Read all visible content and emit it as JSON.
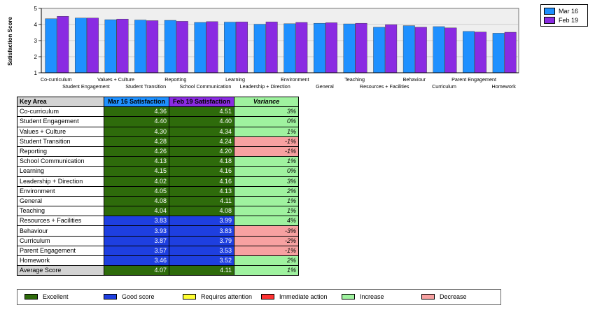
{
  "chart_data": {
    "type": "bar",
    "ylabel": "Satisfaction Score",
    "ylim": [
      1,
      5
    ],
    "yticks": [
      "1",
      "2",
      "3",
      "4",
      "5"
    ],
    "grid": "horizontal",
    "legend_position": "top-right",
    "categories": [
      "Co-curriculum",
      "Student Engagement",
      "Values + Culture",
      "Student Transition",
      "Reporting",
      "School Communication",
      "Learning",
      "Leadership + Direction",
      "Environment",
      "General",
      "Teaching",
      "Resources + Facilities",
      "Behaviour",
      "Curriculum",
      "Parent Engagement",
      "Homework"
    ],
    "series": [
      {
        "name": "Mar 16",
        "color": "#1e90ff",
        "values": [
          4.36,
          4.4,
          4.3,
          4.28,
          4.26,
          4.13,
          4.15,
          4.02,
          4.05,
          4.08,
          4.04,
          3.83,
          3.93,
          3.87,
          3.57,
          3.46
        ]
      },
      {
        "name": "Feb 19",
        "color": "#8a2be2",
        "values": [
          4.51,
          4.4,
          4.34,
          4.24,
          4.2,
          4.18,
          4.16,
          4.16,
          4.13,
          4.11,
          4.08,
          3.99,
          3.83,
          3.79,
          3.53,
          3.52
        ]
      }
    ]
  },
  "table": {
    "headers": {
      "area": "Key Area",
      "m16": "Mar 16 Satisfaction",
      "f19": "Feb 19 Satisfaction",
      "variance": "Variance"
    },
    "rows": [
      {
        "area": "Co-curriculum",
        "m16": "4.36",
        "f19": "4.51",
        "variance": "3%",
        "m16_rating": "excellent",
        "f19_rating": "excellent",
        "trend": "increase"
      },
      {
        "area": "Student Engagement",
        "m16": "4.40",
        "f19": "4.40",
        "variance": "0%",
        "m16_rating": "excellent",
        "f19_rating": "excellent",
        "trend": "increase"
      },
      {
        "area": "Values + Culture",
        "m16": "4.30",
        "f19": "4.34",
        "variance": "1%",
        "m16_rating": "excellent",
        "f19_rating": "excellent",
        "trend": "increase"
      },
      {
        "area": "Student Transition",
        "m16": "4.28",
        "f19": "4.24",
        "variance": "-1%",
        "m16_rating": "excellent",
        "f19_rating": "excellent",
        "trend": "decrease"
      },
      {
        "area": "Reporting",
        "m16": "4.26",
        "f19": "4.20",
        "variance": "-1%",
        "m16_rating": "excellent",
        "f19_rating": "excellent",
        "trend": "decrease"
      },
      {
        "area": "School Communication",
        "m16": "4.13",
        "f19": "4.18",
        "variance": "1%",
        "m16_rating": "excellent",
        "f19_rating": "excellent",
        "trend": "increase"
      },
      {
        "area": "Learning",
        "m16": "4.15",
        "f19": "4.16",
        "variance": "0%",
        "m16_rating": "excellent",
        "f19_rating": "excellent",
        "trend": "increase"
      },
      {
        "area": "Leadership + Direction",
        "m16": "4.02",
        "f19": "4.16",
        "variance": "3%",
        "m16_rating": "excellent",
        "f19_rating": "excellent",
        "trend": "increase"
      },
      {
        "area": "Environment",
        "m16": "4.05",
        "f19": "4.13",
        "variance": "2%",
        "m16_rating": "excellent",
        "f19_rating": "excellent",
        "trend": "increase"
      },
      {
        "area": "General",
        "m16": "4.08",
        "f19": "4.11",
        "variance": "1%",
        "m16_rating": "excellent",
        "f19_rating": "excellent",
        "trend": "increase"
      },
      {
        "area": "Teaching",
        "m16": "4.04",
        "f19": "4.08",
        "variance": "1%",
        "m16_rating": "excellent",
        "f19_rating": "excellent",
        "trend": "increase"
      },
      {
        "area": "Resources + Facilities",
        "m16": "3.83",
        "f19": "3.99",
        "variance": "4%",
        "m16_rating": "good",
        "f19_rating": "good",
        "trend": "increase"
      },
      {
        "area": "Behaviour",
        "m16": "3.93",
        "f19": "3.83",
        "variance": "-3%",
        "m16_rating": "good",
        "f19_rating": "good",
        "trend": "decrease"
      },
      {
        "area": "Curriculum",
        "m16": "3.87",
        "f19": "3.79",
        "variance": "-2%",
        "m16_rating": "good",
        "f19_rating": "good",
        "trend": "decrease"
      },
      {
        "area": "Parent Engagement",
        "m16": "3.57",
        "f19": "3.53",
        "variance": "-1%",
        "m16_rating": "good",
        "f19_rating": "good",
        "trend": "decrease"
      },
      {
        "area": "Homework",
        "m16": "3.46",
        "f19": "3.52",
        "variance": "2%",
        "m16_rating": "good",
        "f19_rating": "good",
        "trend": "increase"
      },
      {
        "area": "Average Score",
        "m16": "4.07",
        "f19": "4.11",
        "variance": "1%",
        "m16_rating": "excellent",
        "f19_rating": "excellent",
        "trend": "increase",
        "is_average": true
      }
    ]
  },
  "key": [
    {
      "label": "Excellent",
      "color": "#2e6b0b"
    },
    {
      "label": "Good score",
      "color": "#1e3fe0"
    },
    {
      "label": "Requires attention",
      "color": "#ffff33"
    },
    {
      "label": "Immediate action",
      "color": "#ff3333"
    },
    {
      "label": "Increase",
      "color": "#9ff29f"
    },
    {
      "label": "Decrease",
      "color": "#f7a1a1"
    }
  ],
  "colors": {
    "excellent": "#2e6b0b",
    "good": "#1e3fe0",
    "increase": "#9ff29f",
    "decrease": "#f7a1a1",
    "plot_bg": "#efefef"
  }
}
